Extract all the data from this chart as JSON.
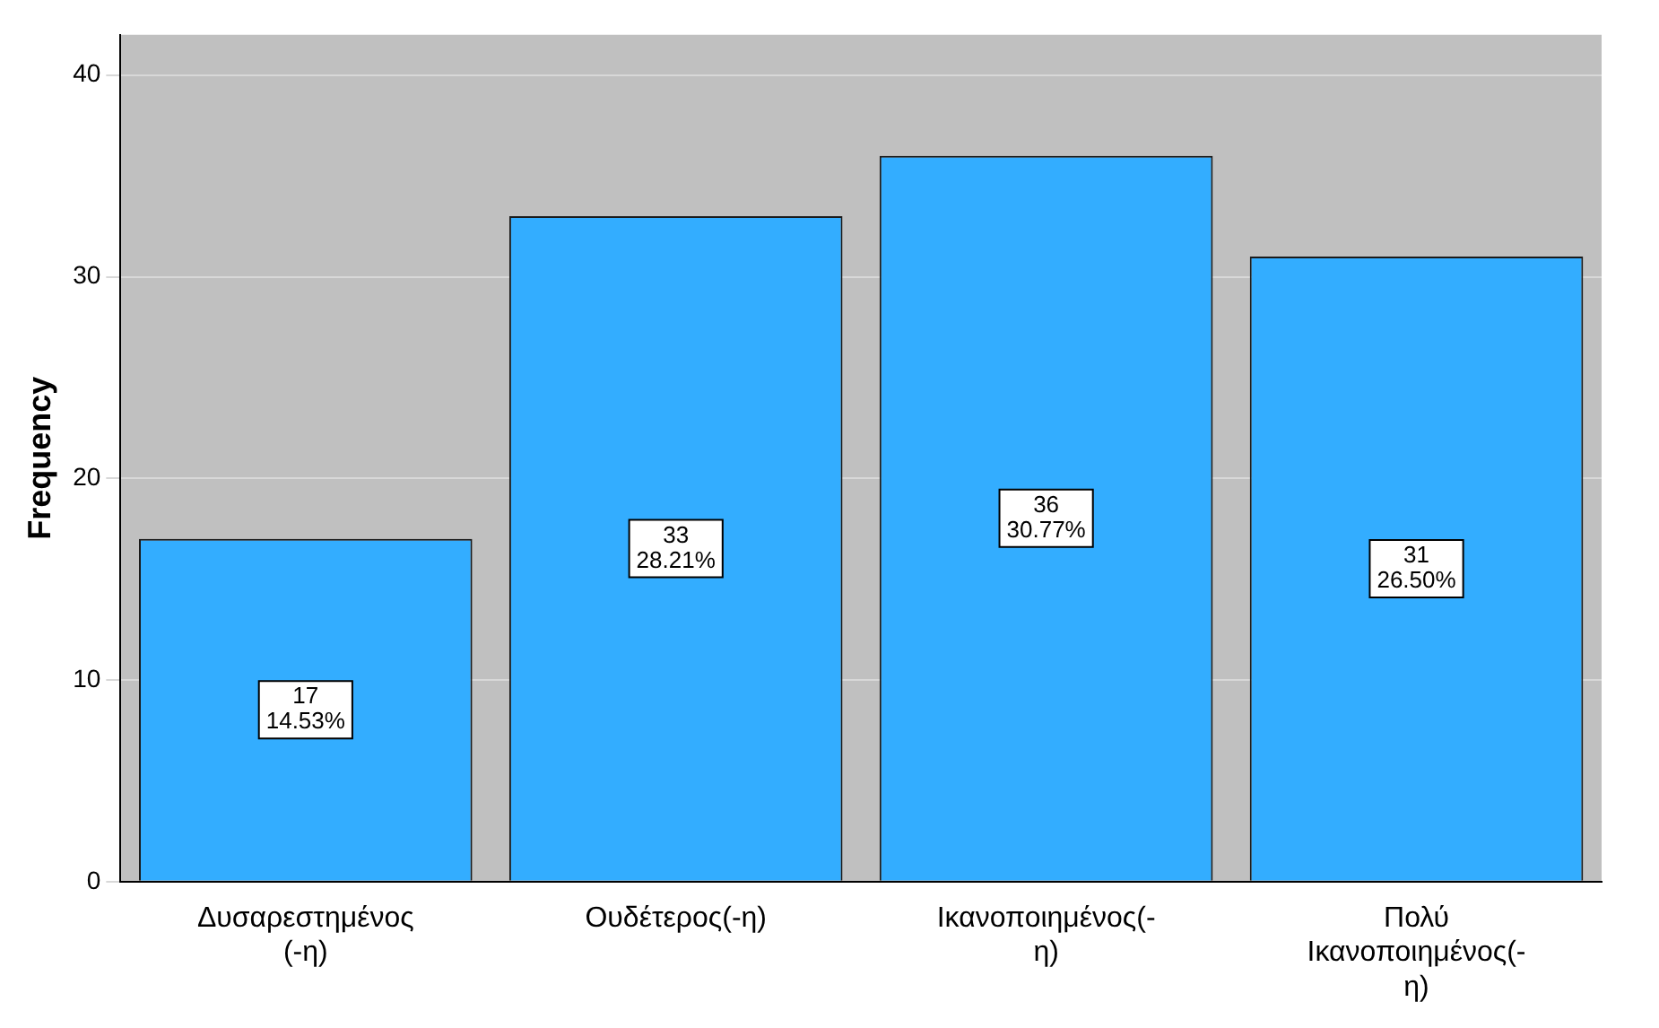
{
  "chart_data": {
    "type": "bar",
    "ylabel": "Frequency",
    "categories": [
      "Δυσαρεστημένος (-η)",
      "Ουδέτερος(-η)",
      "Ικανοποιημένος(-η)",
      "Πολύ Ικανοποιημένος(-η)"
    ],
    "values": [
      17,
      33,
      36,
      31
    ],
    "value_labels": [
      "17\n14.53%",
      "33\n28.21%",
      "36\n30.77%",
      "31\n26.50%"
    ],
    "color": "#33adff",
    "ylim": [
      0,
      42
    ],
    "yticks": [
      0,
      10,
      20,
      30,
      40
    ],
    "grid": "y",
    "legend": false
  }
}
